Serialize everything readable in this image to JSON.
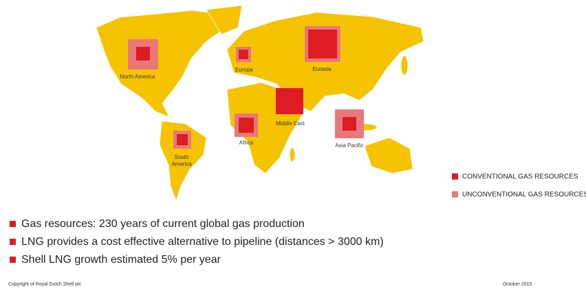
{
  "regions": [
    {
      "label": "North America"
    },
    {
      "label": "Europe"
    },
    {
      "label": "Eurasia"
    },
    {
      "label": "Middle East"
    },
    {
      "label": "Africa"
    },
    {
      "label": "Asia Pacific"
    },
    {
      "label": "South America",
      "lines": [
        "South",
        "America"
      ]
    }
  ],
  "legend": [
    "CONVENTIONAL GAS RESOURCES",
    "UNCONVENTIONAL GAS RESOURCES"
  ],
  "bullets": [
    "Gas resources: 230 years of current global gas production",
    "LNG provides a cost effective alternative to pipeline (distances > 3000 km)",
    "Shell LNG growth estimated 5% per year"
  ],
  "footer": {
    "left": "Copyright of Royal Dutch Shell plc",
    "right": "October 2015"
  }
}
